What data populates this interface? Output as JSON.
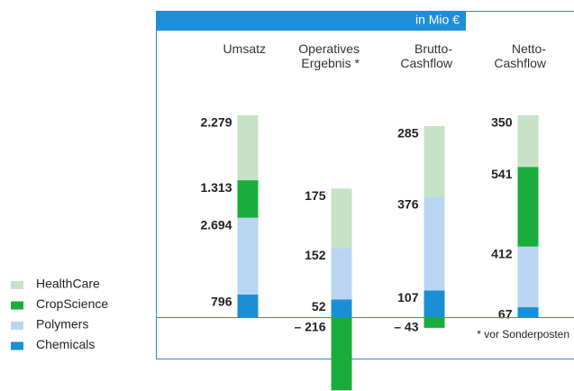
{
  "chart_data": {
    "type": "bar",
    "stacked": true,
    "unit": "in Mio €",
    "footnote": "* vor Sonderposten",
    "categories": [
      "Umsatz",
      "Operatives\nErgebnis *",
      "Brutto-\nCashflow",
      "Netto-\nCashflow"
    ],
    "series": [
      {
        "name": "HealthCare",
        "color": "#c6e2c6",
        "values": [
          2279,
          175,
          285,
          350
        ],
        "value_labels": [
          "2.279",
          "175",
          "285",
          "350"
        ]
      },
      {
        "name": "CropScience",
        "color": "#1aad3c",
        "values": [
          1313,
          -216,
          -43,
          541
        ],
        "value_labels": [
          "1.313",
          "– 216",
          "– 43",
          "541"
        ]
      },
      {
        "name": "Polymers",
        "color": "#b9d5f1",
        "values": [
          2694,
          152,
          376,
          412
        ],
        "value_labels": [
          "2.694",
          "152",
          "376",
          "412"
        ]
      },
      {
        "name": "Chemicals",
        "color": "#1a8fd6",
        "values": [
          796,
          52,
          107,
          67
        ],
        "value_labels": [
          "796",
          "52",
          "107",
          "67"
        ]
      }
    ]
  }
}
